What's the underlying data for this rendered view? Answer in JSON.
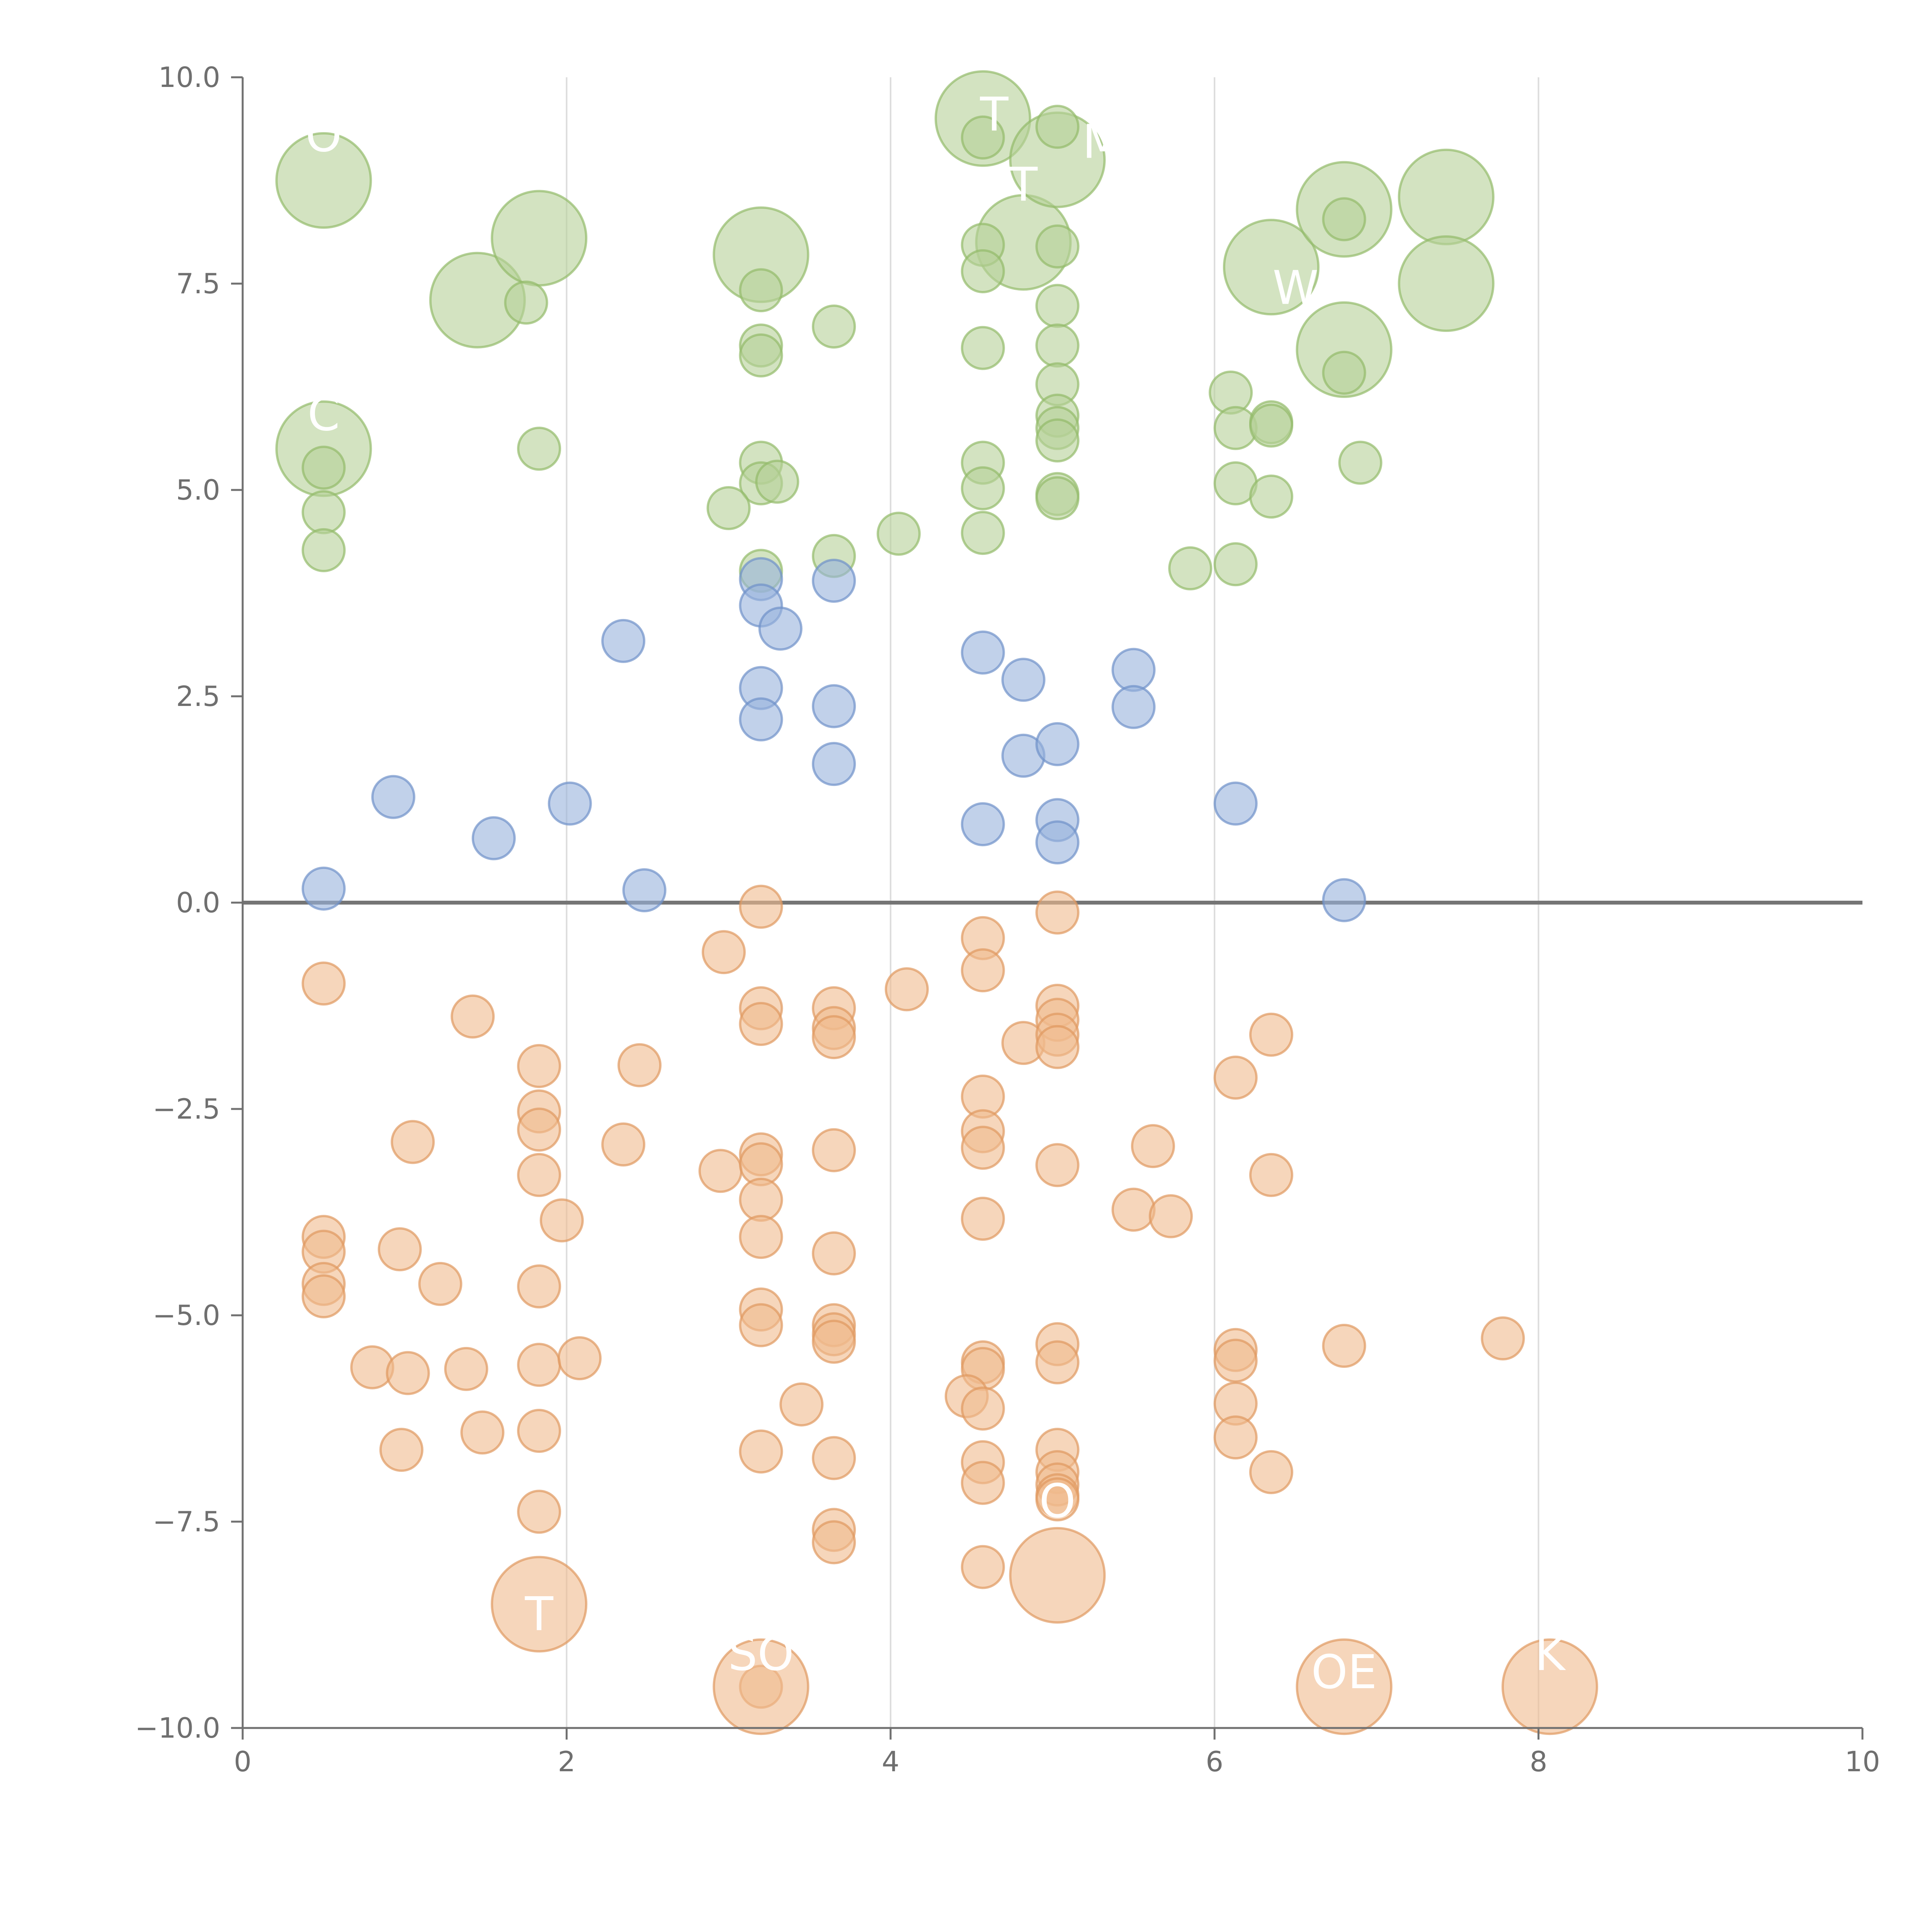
{
  "chart_data": {
    "type": "scatter",
    "title": "",
    "xlabel": "",
    "ylabel": "",
    "xlim": [
      0,
      10
    ],
    "ylim": [
      -10,
      10
    ],
    "x_ticks": [
      0,
      2,
      4,
      6,
      8,
      10
    ],
    "x_tick_labels": [
      "0",
      "2",
      "4",
      "6",
      "8",
      "10"
    ],
    "y_ticks": [
      10,
      7.5,
      5,
      2.5,
      0,
      -2.5,
      -5,
      -7.5,
      -10
    ],
    "y_tick_labels": [
      "10.0",
      "7.5",
      "5.0",
      "2.5",
      "0.0",
      "−2.5",
      "−5.0",
      "−7.5",
      "−10.0"
    ],
    "grid": "vertical",
    "reference_line_y": 0,
    "colors": {
      "green": "#b5d197",
      "green_edge": "#93bb6a",
      "blue": "#98b2dc",
      "blue_edge": "#6f91c9",
      "orange": "#f0bb8e",
      "orange_edge": "#df9960",
      "axis": "#707070",
      "grid": "#dcdcdc",
      "zero_line": "#757575",
      "label": "#ffffff"
    },
    "series": [
      {
        "name": "green",
        "points": [
          [
            0.5,
            8.75,
            2
          ],
          [
            1.45,
            7.3,
            2
          ],
          [
            1.83,
            8.05,
            2
          ],
          [
            3.2,
            7.85,
            2
          ],
          [
            4.57,
            9.5,
            2
          ],
          [
            4.82,
            8.0,
            2
          ],
          [
            5.03,
            9.0,
            2
          ],
          [
            6.35,
            7.7,
            2
          ],
          [
            6.8,
            8.4,
            2
          ],
          [
            7.43,
            8.55,
            2
          ],
          [
            7.43,
            7.5,
            2
          ],
          [
            6.8,
            6.7,
            2
          ],
          [
            0.5,
            5.5,
            2
          ],
          [
            1.75,
            7.27,
            1
          ],
          [
            3.2,
            7.42,
            1
          ],
          [
            3.2,
            6.75,
            1
          ],
          [
            3.2,
            6.63,
            1
          ],
          [
            3.65,
            6.98,
            1
          ],
          [
            4.57,
            9.27,
            1
          ],
          [
            5.03,
            9.4,
            1
          ],
          [
            4.57,
            7.97,
            1
          ],
          [
            4.57,
            7.65,
            1
          ],
          [
            5.03,
            7.95,
            1
          ],
          [
            5.03,
            7.23,
            1
          ],
          [
            4.57,
            6.72,
            1
          ],
          [
            5.03,
            6.75,
            1
          ],
          [
            5.03,
            6.28,
            1
          ],
          [
            5.03,
            5.9,
            1
          ],
          [
            5.03,
            5.75,
            1
          ],
          [
            5.03,
            5.6,
            1
          ],
          [
            5.03,
            4.95,
            1
          ],
          [
            5.03,
            4.9,
            1
          ],
          [
            4.57,
            5.33,
            1
          ],
          [
            4.57,
            5.02,
            1
          ],
          [
            4.57,
            4.48,
            1
          ],
          [
            3.2,
            5.33,
            1
          ],
          [
            3.2,
            5.08,
            1
          ],
          [
            3.3,
            5.1,
            1
          ],
          [
            3.0,
            4.78,
            1
          ],
          [
            3.2,
            4.02,
            1
          ],
          [
            3.65,
            4.2,
            1
          ],
          [
            4.05,
            4.47,
            1
          ],
          [
            0.5,
            5.27,
            1
          ],
          [
            0.5,
            4.73,
            1
          ],
          [
            0.5,
            4.27,
            1
          ],
          [
            1.83,
            5.5,
            1
          ],
          [
            6.1,
            6.18,
            1
          ],
          [
            6.13,
            5.75,
            1
          ],
          [
            6.35,
            5.82,
            1
          ],
          [
            6.35,
            5.78,
            1
          ],
          [
            6.8,
            6.42,
            1
          ],
          [
            6.8,
            8.28,
            1
          ],
          [
            6.9,
            5.33,
            1
          ],
          [
            6.13,
            5.08,
            1
          ],
          [
            6.35,
            4.92,
            1
          ],
          [
            6.13,
            4.1,
            1
          ],
          [
            5.85,
            4.05,
            1
          ]
        ]
      },
      {
        "name": "blue",
        "points": [
          [
            0.5,
            0.17,
            1
          ],
          [
            0.93,
            1.28,
            1
          ],
          [
            1.55,
            0.78,
            1
          ],
          [
            2.02,
            1.2,
            1
          ],
          [
            2.35,
            3.17,
            1
          ],
          [
            2.48,
            0.15,
            1
          ],
          [
            3.2,
            3.92,
            1
          ],
          [
            3.2,
            3.6,
            1
          ],
          [
            3.32,
            3.32,
            1
          ],
          [
            3.2,
            2.6,
            1
          ],
          [
            3.2,
            2.22,
            1
          ],
          [
            3.65,
            3.9,
            1
          ],
          [
            3.65,
            2.38,
            1
          ],
          [
            3.65,
            1.68,
            1
          ],
          [
            4.57,
            3.03,
            1
          ],
          [
            4.82,
            2.7,
            1
          ],
          [
            4.82,
            1.78,
            1
          ],
          [
            5.03,
            1.92,
            1
          ],
          [
            4.57,
            0.95,
            1
          ],
          [
            5.03,
            1.0,
            1
          ],
          [
            5.03,
            0.73,
            1
          ],
          [
            5.5,
            2.82,
            1
          ],
          [
            5.5,
            2.37,
            1
          ],
          [
            6.13,
            1.2,
            1
          ],
          [
            6.8,
            0.03,
            1
          ]
        ]
      },
      {
        "name": "orange",
        "points": [
          [
            0.5,
            -0.98,
            1
          ],
          [
            1.42,
            -1.38,
            1
          ],
          [
            1.83,
            -1.98,
            1
          ],
          [
            2.45,
            -1.97,
            1
          ],
          [
            1.05,
            -2.9,
            1
          ],
          [
            1.83,
            -2.53,
            1
          ],
          [
            1.83,
            -2.75,
            1
          ],
          [
            1.83,
            -3.3,
            1
          ],
          [
            1.97,
            -3.85,
            1
          ],
          [
            2.35,
            -2.93,
            1
          ],
          [
            0.5,
            -4.05,
            1
          ],
          [
            0.5,
            -4.23,
            1
          ],
          [
            0.97,
            -4.2,
            1
          ],
          [
            1.22,
            -4.62,
            1
          ],
          [
            0.5,
            -4.62,
            1
          ],
          [
            0.5,
            -4.77,
            1
          ],
          [
            1.83,
            -4.65,
            1
          ],
          [
            0.8,
            -5.63,
            1
          ],
          [
            1.02,
            -5.7,
            1
          ],
          [
            1.38,
            -5.65,
            1
          ],
          [
            1.83,
            -5.6,
            1
          ],
          [
            2.08,
            -5.52,
            1
          ],
          [
            0.98,
            -6.63,
            1
          ],
          [
            1.48,
            -6.42,
            1
          ],
          [
            1.83,
            -6.4,
            1
          ],
          [
            1.83,
            -7.38,
            1
          ],
          [
            2.97,
            -0.6,
            1
          ],
          [
            3.2,
            -0.05,
            1
          ],
          [
            3.2,
            -1.28,
            1
          ],
          [
            3.2,
            -1.47,
            1
          ],
          [
            2.95,
            -3.25,
            1
          ],
          [
            3.2,
            -3.05,
            1
          ],
          [
            3.2,
            -3.17,
            1
          ],
          [
            3.2,
            -3.6,
            1
          ],
          [
            3.2,
            -4.05,
            1
          ],
          [
            3.2,
            -4.93,
            1
          ],
          [
            3.2,
            -5.12,
            1
          ],
          [
            3.45,
            -6.08,
            1
          ],
          [
            3.2,
            -6.65,
            1
          ],
          [
            3.65,
            -1.28,
            1
          ],
          [
            3.65,
            -1.52,
            1
          ],
          [
            3.65,
            -1.63,
            1
          ],
          [
            3.65,
            -3.0,
            1
          ],
          [
            3.65,
            -4.25,
            1
          ],
          [
            3.65,
            -5.12,
            1
          ],
          [
            3.65,
            -5.23,
            1
          ],
          [
            3.65,
            -5.32,
            1
          ],
          [
            3.65,
            -6.73,
            1
          ],
          [
            3.65,
            -7.6,
            1
          ],
          [
            3.65,
            -7.75,
            1
          ],
          [
            4.1,
            -1.05,
            1
          ],
          [
            4.57,
            -0.43,
            1
          ],
          [
            4.57,
            -0.82,
            1
          ],
          [
            4.82,
            -1.7,
            1
          ],
          [
            4.57,
            -2.35,
            1
          ],
          [
            4.57,
            -2.77,
            1
          ],
          [
            4.57,
            -2.97,
            1
          ],
          [
            4.57,
            -3.83,
            1
          ],
          [
            4.57,
            -5.57,
            1
          ],
          [
            4.57,
            -5.65,
            1
          ],
          [
            4.47,
            -5.98,
            1
          ],
          [
            4.57,
            -6.13,
            1
          ],
          [
            4.57,
            -6.78,
            1
          ],
          [
            4.57,
            -7.03,
            1
          ],
          [
            4.57,
            -8.05,
            1
          ],
          [
            5.03,
            -0.12,
            1
          ],
          [
            5.03,
            -1.25,
            1
          ],
          [
            5.03,
            -1.42,
            1
          ],
          [
            5.03,
            -1.6,
            1
          ],
          [
            5.03,
            -1.75,
            1
          ],
          [
            5.03,
            -3.18,
            1
          ],
          [
            5.03,
            -5.35,
            1
          ],
          [
            5.03,
            -5.57,
            1
          ],
          [
            5.03,
            -6.63,
            1
          ],
          [
            5.03,
            -6.9,
            1
          ],
          [
            5.03,
            -7.05,
            1
          ],
          [
            5.03,
            -7.18,
            1
          ],
          [
            5.03,
            -7.23,
            1
          ],
          [
            5.5,
            -3.72,
            1
          ],
          [
            5.62,
            -2.95,
            1
          ],
          [
            5.73,
            -3.8,
            1
          ],
          [
            6.13,
            -2.12,
            1
          ],
          [
            6.35,
            -1.6,
            1
          ],
          [
            6.35,
            -3.3,
            1
          ],
          [
            6.13,
            -5.42,
            1
          ],
          [
            6.13,
            -5.55,
            1
          ],
          [
            6.13,
            -6.07,
            1
          ],
          [
            6.13,
            -6.48,
            1
          ],
          [
            6.35,
            -6.9,
            1
          ],
          [
            6.8,
            -5.37,
            1
          ],
          [
            7.78,
            -5.28,
            1
          ],
          [
            3.2,
            -9.5,
            1
          ],
          [
            1.83,
            -8.5,
            2
          ],
          [
            3.2,
            -9.5,
            2
          ],
          [
            5.03,
            -8.15,
            2
          ],
          [
            6.8,
            -9.5,
            2
          ],
          [
            8.07,
            -9.5,
            2
          ]
        ]
      }
    ],
    "labels": [
      {
        "text": "O",
        "x": 0.5,
        "y": 9.3
      },
      {
        "text": "T",
        "x": 4.64,
        "y": 9.55
      },
      {
        "text": "MI",
        "x": 5.35,
        "y": 9.22
      },
      {
        "text": "T",
        "x": 4.82,
        "y": 8.7
      },
      {
        "text": "W",
        "x": 6.5,
        "y": 7.45
      },
      {
        "text": "C",
        "x": 0.5,
        "y": 5.92
      },
      {
        "text": "O",
        "x": 5.03,
        "y": -7.25
      },
      {
        "text": "T",
        "x": 1.83,
        "y": -8.62
      },
      {
        "text": "SO",
        "x": 3.2,
        "y": -9.1
      },
      {
        "text": "OE",
        "x": 6.8,
        "y": -9.32
      },
      {
        "text": "K",
        "x": 8.07,
        "y": -9.1
      }
    ]
  }
}
